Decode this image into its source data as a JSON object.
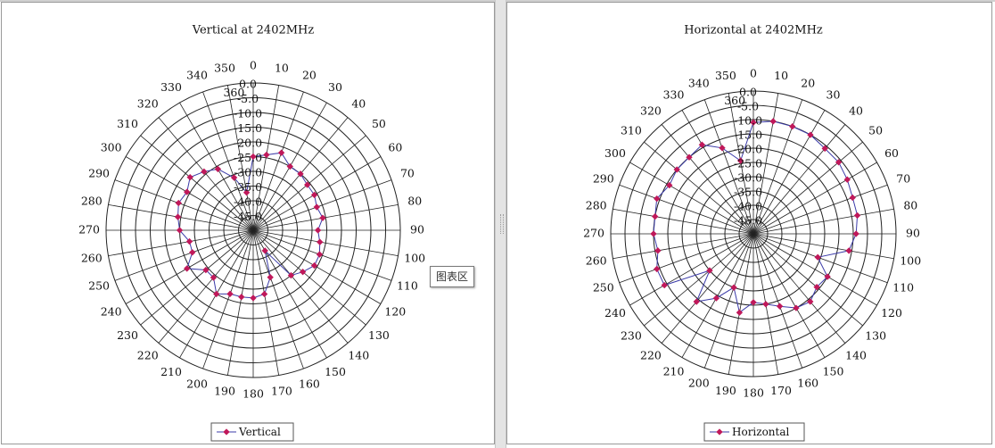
{
  "tooltip": "图表区",
  "colors": {
    "line": "#3b3ba8",
    "marker": "#c0185a",
    "grid": "#222222"
  },
  "chart_data": [
    {
      "type": "radar",
      "title": "Vertical at 2402MHz",
      "legend": "Vertical",
      "legend_position": "bottom",
      "angle_labels": [
        "0",
        "10",
        "20",
        "30",
        "40",
        "50",
        "60",
        "70",
        "80",
        "90",
        "100",
        "110",
        "120",
        "130",
        "140",
        "150",
        "160",
        "170",
        "180",
        "190",
        "200",
        "210",
        "220",
        "230",
        "240",
        "250",
        "260",
        "270",
        "280",
        "290",
        "300",
        "310",
        "320",
        "330",
        "340",
        "350",
        "360"
      ],
      "radial_labels": [
        "0.0",
        "-5.0",
        "-10.0",
        "-15.0",
        "-20.0",
        "-25.0",
        "-30.0",
        "-35.0",
        "-40.0",
        "-45.0"
      ],
      "r_range": [
        -50,
        0
      ],
      "grid": true,
      "series": [
        {
          "name": "Vertical",
          "angles": [
            0,
            10,
            20,
            30,
            40,
            50,
            60,
            70,
            80,
            90,
            100,
            110,
            120,
            130,
            140,
            150,
            160,
            170,
            180,
            190,
            200,
            210,
            220,
            230,
            240,
            250,
            260,
            270,
            280,
            290,
            300,
            310,
            320,
            330,
            340,
            350
          ],
          "values": [
            -25,
            -24,
            -22,
            -25,
            -25,
            -26,
            -26,
            -27,
            -26,
            -28,
            -27,
            -26,
            -26,
            -28,
            -30,
            -42,
            -33,
            -28,
            -27,
            -27,
            -27,
            -25,
            -29,
            -29,
            -24,
            -28,
            -28,
            -25,
            -24,
            -23,
            -24,
            -22,
            -24,
            -26,
            -31,
            -37
          ]
        }
      ]
    },
    {
      "type": "radar",
      "title": "Horizontal at 2402MHz",
      "legend": "Horizontal",
      "legend_position": "bottom",
      "angle_labels": [
        "0",
        "10",
        "20",
        "30",
        "40",
        "50",
        "60",
        "70",
        "80",
        "90",
        "100",
        "110",
        "120",
        "130",
        "140",
        "150",
        "160",
        "170",
        "180",
        "190",
        "200",
        "210",
        "220",
        "230",
        "240",
        "250",
        "260",
        "270",
        "280",
        "290",
        "300",
        "310",
        "320",
        "330",
        "340",
        "350",
        "360"
      ],
      "radial_labels": [
        "0.0",
        "-5.0",
        "-10.0",
        "-15.0",
        "-20.0",
        "-25.0",
        "-30.0",
        "-35.0",
        "-40.0",
        "-45.0"
      ],
      "r_range": [
        -50,
        0
      ],
      "grid": true,
      "series": [
        {
          "name": "Horizontal",
          "angles": [
            0,
            10,
            20,
            30,
            40,
            50,
            60,
            70,
            80,
            90,
            100,
            110,
            120,
            130,
            140,
            150,
            160,
            170,
            180,
            190,
            200,
            210,
            220,
            230,
            240,
            250,
            260,
            270,
            280,
            290,
            300,
            310,
            320,
            330,
            340,
            350
          ],
          "values": [
            -11,
            -10,
            -10,
            -10,
            -11,
            -11,
            -12,
            -13,
            -13,
            -14,
            -16,
            -26,
            -20,
            -21,
            -19,
            -20,
            -23,
            -25,
            -26,
            -22,
            -30,
            -24,
            -19,
            -30,
            -14,
            -14,
            -16,
            -15,
            -15,
            -14,
            -16,
            -15,
            -15,
            -14,
            -18,
            -24
          ]
        }
      ]
    }
  ]
}
